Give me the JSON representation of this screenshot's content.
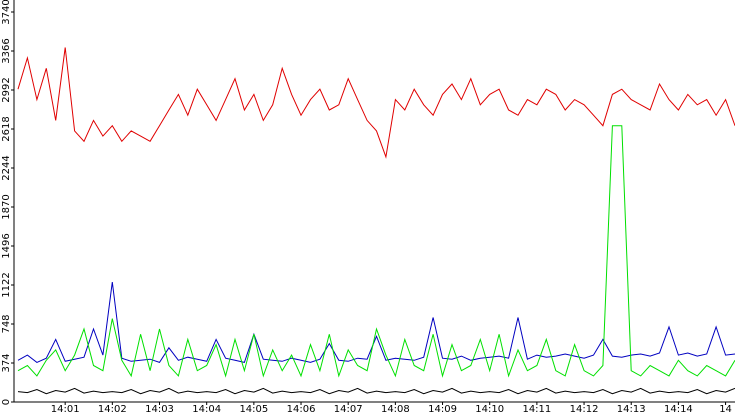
{
  "chart_data": {
    "type": "line",
    "x": [
      0,
      0.2,
      0.4,
      0.6,
      0.8,
      1,
      1.2,
      1.4,
      1.6,
      1.8,
      2,
      2.2,
      2.4,
      2.6,
      2.8,
      3,
      3.2,
      3.4,
      3.6,
      3.8,
      4,
      4.2,
      4.4,
      4.6,
      4.8,
      5,
      5.2,
      5.4,
      5.6,
      5.8,
      6,
      6.2,
      6.4,
      6.6,
      6.8,
      7,
      7.2,
      7.4,
      7.6,
      7.8,
      8,
      8.2,
      8.4,
      8.6,
      8.8,
      9,
      9.2,
      9.4,
      9.6,
      9.8,
      10,
      10.2,
      10.4,
      10.6,
      10.8,
      11,
      11.2,
      11.4,
      11.6,
      11.8,
      12,
      12.2,
      12.4,
      12.6,
      12.8,
      13,
      13.2,
      13.4,
      13.6,
      13.8,
      14,
      14.2,
      14.4,
      14.6,
      14.8,
      15,
      15.2
    ],
    "series": [
      {
        "color": "#e00000",
        "values": [
          3000,
          3300,
          2900,
          3200,
          2700,
          3400,
          2600,
          2500,
          2700,
          2550,
          2650,
          2500,
          2600,
          2550,
          2500,
          2650,
          2800,
          2950,
          2750,
          3000,
          2850,
          2700,
          2900,
          3100,
          2800,
          2950,
          2700,
          2850,
          3200,
          2950,
          2750,
          2900,
          3000,
          2800,
          2850,
          3100,
          2900,
          2700,
          2600,
          2350,
          2900,
          2800,
          3000,
          2850,
          2750,
          2950,
          3050,
          2900,
          3100,
          2850,
          2950,
          3000,
          2800,
          2750,
          2900,
          2850,
          3000,
          2950,
          2800,
          2900,
          2850,
          2750,
          2650,
          2950,
          3000,
          2900,
          2850,
          2800,
          3050,
          2900,
          2800,
          2950,
          2850,
          2900,
          2750,
          2900,
          2650
        ]
      },
      {
        "color": "#0000c0",
        "values": [
          400,
          450,
          380,
          420,
          600,
          390,
          410,
          430,
          700,
          450,
          1150,
          420,
          390,
          400,
          410,
          380,
          520,
          400,
          430,
          410,
          390,
          600,
          420,
          400,
          380,
          650,
          410,
          400,
          390,
          420,
          400,
          380,
          410,
          560,
          400,
          390,
          420,
          410,
          630,
          400,
          420,
          410,
          400,
          430,
          810,
          420,
          410,
          440,
          400,
          420,
          430,
          440,
          420,
          810,
          410,
          450,
          430,
          440,
          460,
          440,
          420,
          450,
          600,
          440,
          430,
          450,
          460,
          440,
          470,
          720,
          450,
          470,
          440,
          460,
          720,
          450,
          460
        ]
      },
      {
        "color": "#00e000",
        "values": [
          300,
          350,
          250,
          400,
          500,
          300,
          450,
          700,
          350,
          300,
          800,
          400,
          250,
          650,
          300,
          700,
          350,
          250,
          600,
          300,
          350,
          550,
          250,
          600,
          300,
          650,
          250,
          500,
          300,
          450,
          250,
          550,
          300,
          650,
          250,
          500,
          350,
          300,
          700,
          450,
          250,
          600,
          350,
          300,
          650,
          250,
          550,
          300,
          350,
          600,
          300,
          650,
          250,
          500,
          300,
          350,
          600,
          300,
          250,
          550,
          300,
          250,
          350,
          2650,
          2650,
          300,
          250,
          350,
          300,
          250,
          400,
          300,
          250,
          350,
          300,
          250,
          400
        ]
      },
      {
        "color": "#000000",
        "values": [
          100,
          90,
          120,
          80,
          110,
          95,
          130,
          85,
          105,
          90,
          100,
          90,
          120,
          80,
          110,
          95,
          130,
          85,
          105,
          90,
          100,
          90,
          120,
          80,
          110,
          95,
          130,
          85,
          105,
          90,
          100,
          90,
          120,
          80,
          110,
          95,
          130,
          85,
          105,
          90,
          100,
          90,
          120,
          80,
          110,
          95,
          130,
          85,
          105,
          90,
          100,
          90,
          120,
          80,
          110,
          95,
          130,
          85,
          105,
          90,
          100,
          90,
          120,
          80,
          110,
          95,
          130,
          85,
          105,
          90,
          100,
          90,
          120,
          80,
          110,
          95,
          130
        ]
      }
    ],
    "xlim": [
      0,
      15.2
    ],
    "xticks": [
      {
        "value": 1,
        "label": "14:01"
      },
      {
        "value": 2,
        "label": "14:02"
      },
      {
        "value": 3,
        "label": "14:03"
      },
      {
        "value": 4,
        "label": "14:04"
      },
      {
        "value": 5,
        "label": "14:05"
      },
      {
        "value": 6,
        "label": "14:06"
      },
      {
        "value": 7,
        "label": "14:07"
      },
      {
        "value": 8,
        "label": "14:08"
      },
      {
        "value": 9,
        "label": "14:09"
      },
      {
        "value": 10,
        "label": "14:10"
      },
      {
        "value": 11,
        "label": "14:11"
      },
      {
        "value": 12,
        "label": "14:12"
      },
      {
        "value": 13,
        "label": "14:13"
      },
      {
        "value": 14,
        "label": "14:14"
      },
      {
        "value": 15,
        "label": "14"
      }
    ],
    "ylim": [
      0,
      3740
    ],
    "yticks": [
      0,
      374,
      748,
      1122,
      1496,
      1870,
      2244,
      2618,
      2992,
      3366,
      3740
    ]
  }
}
